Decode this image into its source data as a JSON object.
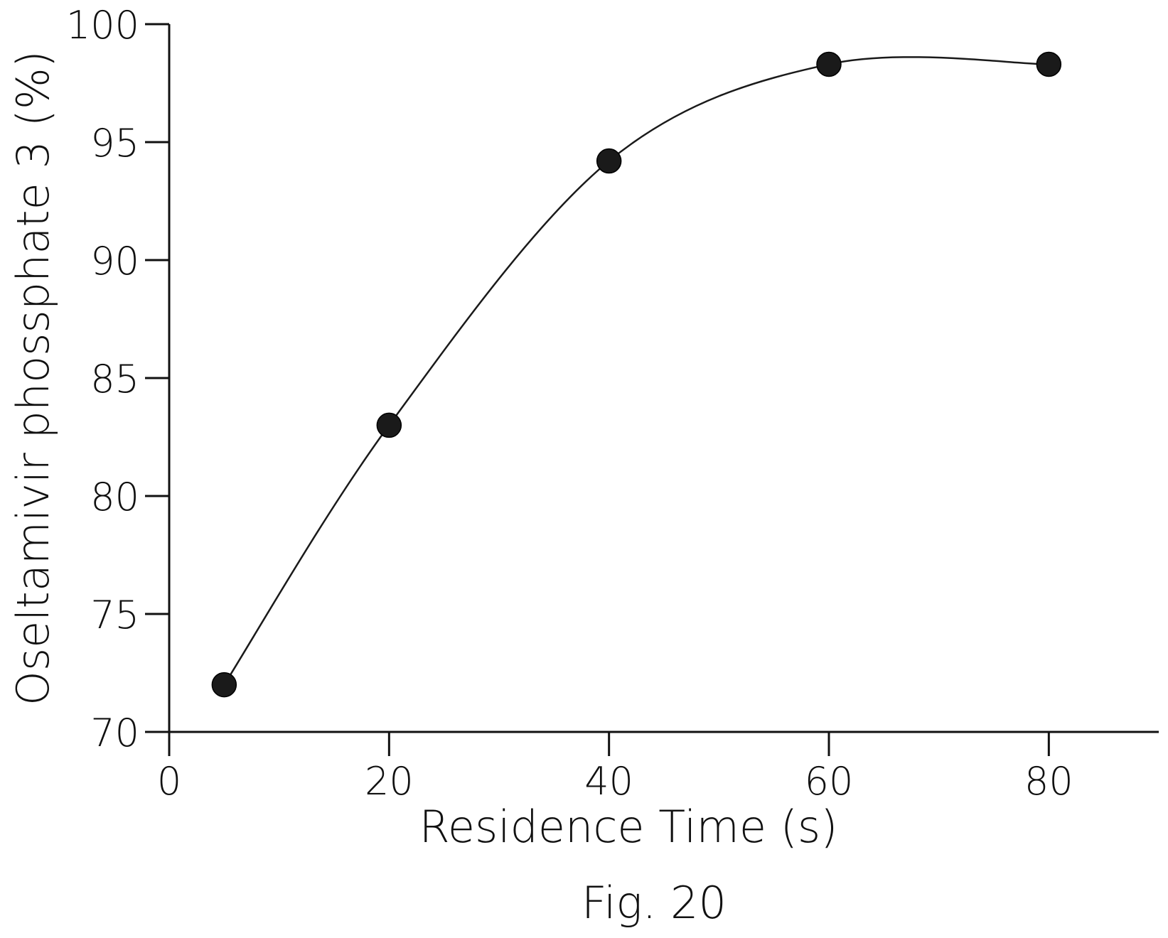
{
  "chart_data": {
    "type": "line",
    "title": "",
    "caption": "Fig. 20",
    "xlabel": "Residence Time (s)",
    "ylabel": "Oseltamivir phossphate 3 (%)",
    "xlim": [
      0,
      90
    ],
    "ylim": [
      70,
      100
    ],
    "xticks": [
      0,
      20,
      40,
      60,
      80
    ],
    "xtick_labels": [
      "0",
      "20",
      "40",
      "60",
      "80"
    ],
    "yticks": [
      70,
      75,
      80,
      85,
      90,
      95,
      100
    ],
    "ytick_labels": [
      "70",
      "75",
      "80",
      "85",
      "90",
      "95",
      "100"
    ],
    "grid": false,
    "legend": "none",
    "series": [
      {
        "x": [
          5,
          20,
          40,
          60,
          80
        ],
        "y": [
          72,
          83,
          94.2,
          98.3,
          98.3
        ],
        "line_style": "smooth",
        "marker": "filled-circle",
        "color": "#1a1a1a"
      }
    ]
  }
}
